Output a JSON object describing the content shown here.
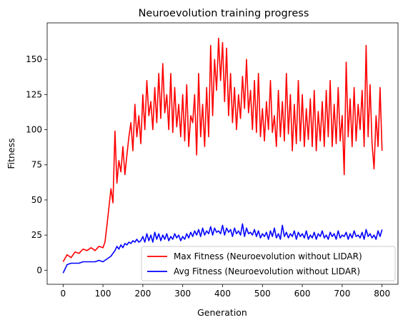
{
  "chart_data": {
    "type": "line",
    "title": "Neuroevolution training progress",
    "xlabel": "Generation",
    "ylabel": "Fitness",
    "xlim": [
      -40,
      840
    ],
    "ylim": [
      -10,
      176
    ],
    "xticks": [
      0,
      100,
      200,
      300,
      400,
      500,
      600,
      700,
      800
    ],
    "yticks": [
      0,
      25,
      50,
      75,
      100,
      125,
      150
    ],
    "grid": false,
    "legend_position": "lower-right",
    "series": [
      {
        "name": "Max Fitness (Neuroevolution without LIDAR)",
        "color": "#ff0000",
        "x": [
          0,
          10,
          20,
          30,
          40,
          50,
          60,
          70,
          80,
          90,
          100,
          105,
          110,
          115,
          120,
          125,
          130,
          135,
          140,
          145,
          150,
          155,
          160,
          165,
          170,
          175,
          180,
          185,
          190,
          195,
          200,
          205,
          210,
          215,
          220,
          225,
          230,
          235,
          240,
          245,
          250,
          255,
          260,
          265,
          270,
          275,
          280,
          285,
          290,
          295,
          300,
          305,
          310,
          315,
          320,
          325,
          330,
          335,
          340,
          345,
          350,
          355,
          360,
          365,
          370,
          375,
          380,
          385,
          390,
          395,
          400,
          405,
          410,
          415,
          420,
          425,
          430,
          435,
          440,
          445,
          450,
          455,
          460,
          465,
          470,
          475,
          480,
          485,
          490,
          495,
          500,
          505,
          510,
          515,
          520,
          525,
          530,
          535,
          540,
          545,
          550,
          555,
          560,
          565,
          570,
          575,
          580,
          585,
          590,
          595,
          600,
          605,
          610,
          615,
          620,
          625,
          630,
          635,
          640,
          645,
          650,
          655,
          660,
          665,
          670,
          675,
          680,
          685,
          690,
          695,
          700,
          705,
          710,
          715,
          720,
          725,
          730,
          735,
          740,
          745,
          750,
          755,
          760,
          765,
          770,
          775,
          780,
          785,
          790,
          795,
          800
        ],
        "y": [
          6,
          11,
          9,
          13,
          12,
          15,
          14,
          16,
          14,
          17,
          16,
          20,
          32,
          45,
          58,
          48,
          99,
          62,
          78,
          70,
          88,
          68,
          82,
          95,
          105,
          85,
          118,
          95,
          110,
          90,
          125,
          100,
          135,
          110,
          120,
          100,
          130,
          105,
          140,
          108,
          147,
          112,
          125,
          100,
          140,
          98,
          130,
          102,
          118,
          95,
          125,
          92,
          132,
          88,
          110,
          105,
          125,
          82,
          140,
          95,
          118,
          88,
          130,
          95,
          160,
          110,
          150,
          128,
          165,
          135,
          162,
          120,
          158,
          110,
          140,
          105,
          130,
          100,
          125,
          108,
          138,
          115,
          150,
          112,
          128,
          100,
          135,
          98,
          140,
          95,
          115,
          92,
          120,
          100,
          135,
          98,
          110,
          88,
          128,
          95,
          120,
          92,
          140,
          97,
          125,
          85,
          118,
          90,
          135,
          92,
          125,
          88,
          115,
          93,
          122,
          88,
          128,
          85,
          113,
          92,
          120,
          88,
          128,
          95,
          135,
          88,
          118,
          90,
          130,
          92,
          110,
          68,
          148,
          95,
          122,
          88,
          130,
          92,
          118,
          100,
          128,
          88,
          160,
          95,
          132,
          90,
          72,
          110,
          88,
          130,
          85
        ]
      },
      {
        "name": "Avg Fitness (Neuroevolution without LIDAR)",
        "color": "#0000ff",
        "x": [
          0,
          10,
          20,
          30,
          40,
          50,
          60,
          70,
          80,
          90,
          100,
          105,
          110,
          115,
          120,
          125,
          130,
          135,
          140,
          145,
          150,
          155,
          160,
          165,
          170,
          175,
          180,
          185,
          190,
          195,
          200,
          205,
          210,
          215,
          220,
          225,
          230,
          235,
          240,
          245,
          250,
          255,
          260,
          265,
          270,
          275,
          280,
          285,
          290,
          295,
          300,
          305,
          310,
          315,
          320,
          325,
          330,
          335,
          340,
          345,
          350,
          355,
          360,
          365,
          370,
          375,
          380,
          385,
          390,
          395,
          400,
          405,
          410,
          415,
          420,
          425,
          430,
          435,
          440,
          445,
          450,
          455,
          460,
          465,
          470,
          475,
          480,
          485,
          490,
          495,
          500,
          505,
          510,
          515,
          520,
          525,
          530,
          535,
          540,
          545,
          550,
          555,
          560,
          565,
          570,
          575,
          580,
          585,
          590,
          595,
          600,
          605,
          610,
          615,
          620,
          625,
          630,
          635,
          640,
          645,
          650,
          655,
          660,
          665,
          670,
          675,
          680,
          685,
          690,
          695,
          700,
          705,
          710,
          715,
          720,
          725,
          730,
          735,
          740,
          745,
          750,
          755,
          760,
          765,
          770,
          775,
          780,
          785,
          790,
          795,
          800
        ],
        "y": [
          -2,
          4,
          5,
          5,
          5,
          6,
          6,
          6,
          6,
          7,
          6,
          7,
          8,
          9,
          10,
          12,
          14,
          17,
          15,
          18,
          16,
          19,
          18,
          20,
          19,
          21,
          20,
          22,
          20,
          21,
          24,
          20,
          26,
          21,
          25,
          20,
          27,
          22,
          26,
          21,
          25,
          22,
          26,
          21,
          24,
          22,
          26,
          23,
          25,
          21,
          24,
          22,
          26,
          23,
          27,
          24,
          28,
          25,
          29,
          24,
          30,
          25,
          28,
          26,
          31,
          25,
          30,
          27,
          28,
          26,
          32,
          25,
          30,
          27,
          29,
          24,
          30,
          26,
          28,
          25,
          33,
          24,
          30,
          26,
          27,
          25,
          29,
          24,
          28,
          23,
          26,
          24,
          27,
          22,
          28,
          24,
          30,
          23,
          26,
          22,
          32,
          24,
          27,
          23,
          26,
          24,
          28,
          22,
          27,
          24,
          26,
          23,
          28,
          22,
          25,
          23,
          27,
          22,
          26,
          24,
          28,
          23,
          25,
          22,
          27,
          24,
          26,
          22,
          28,
          23,
          25,
          24,
          27,
          22,
          26,
          23,
          28,
          24,
          25,
          23,
          27,
          22,
          29,
          24,
          26,
          23,
          25,
          22,
          28,
          24,
          29
        ]
      }
    ]
  }
}
